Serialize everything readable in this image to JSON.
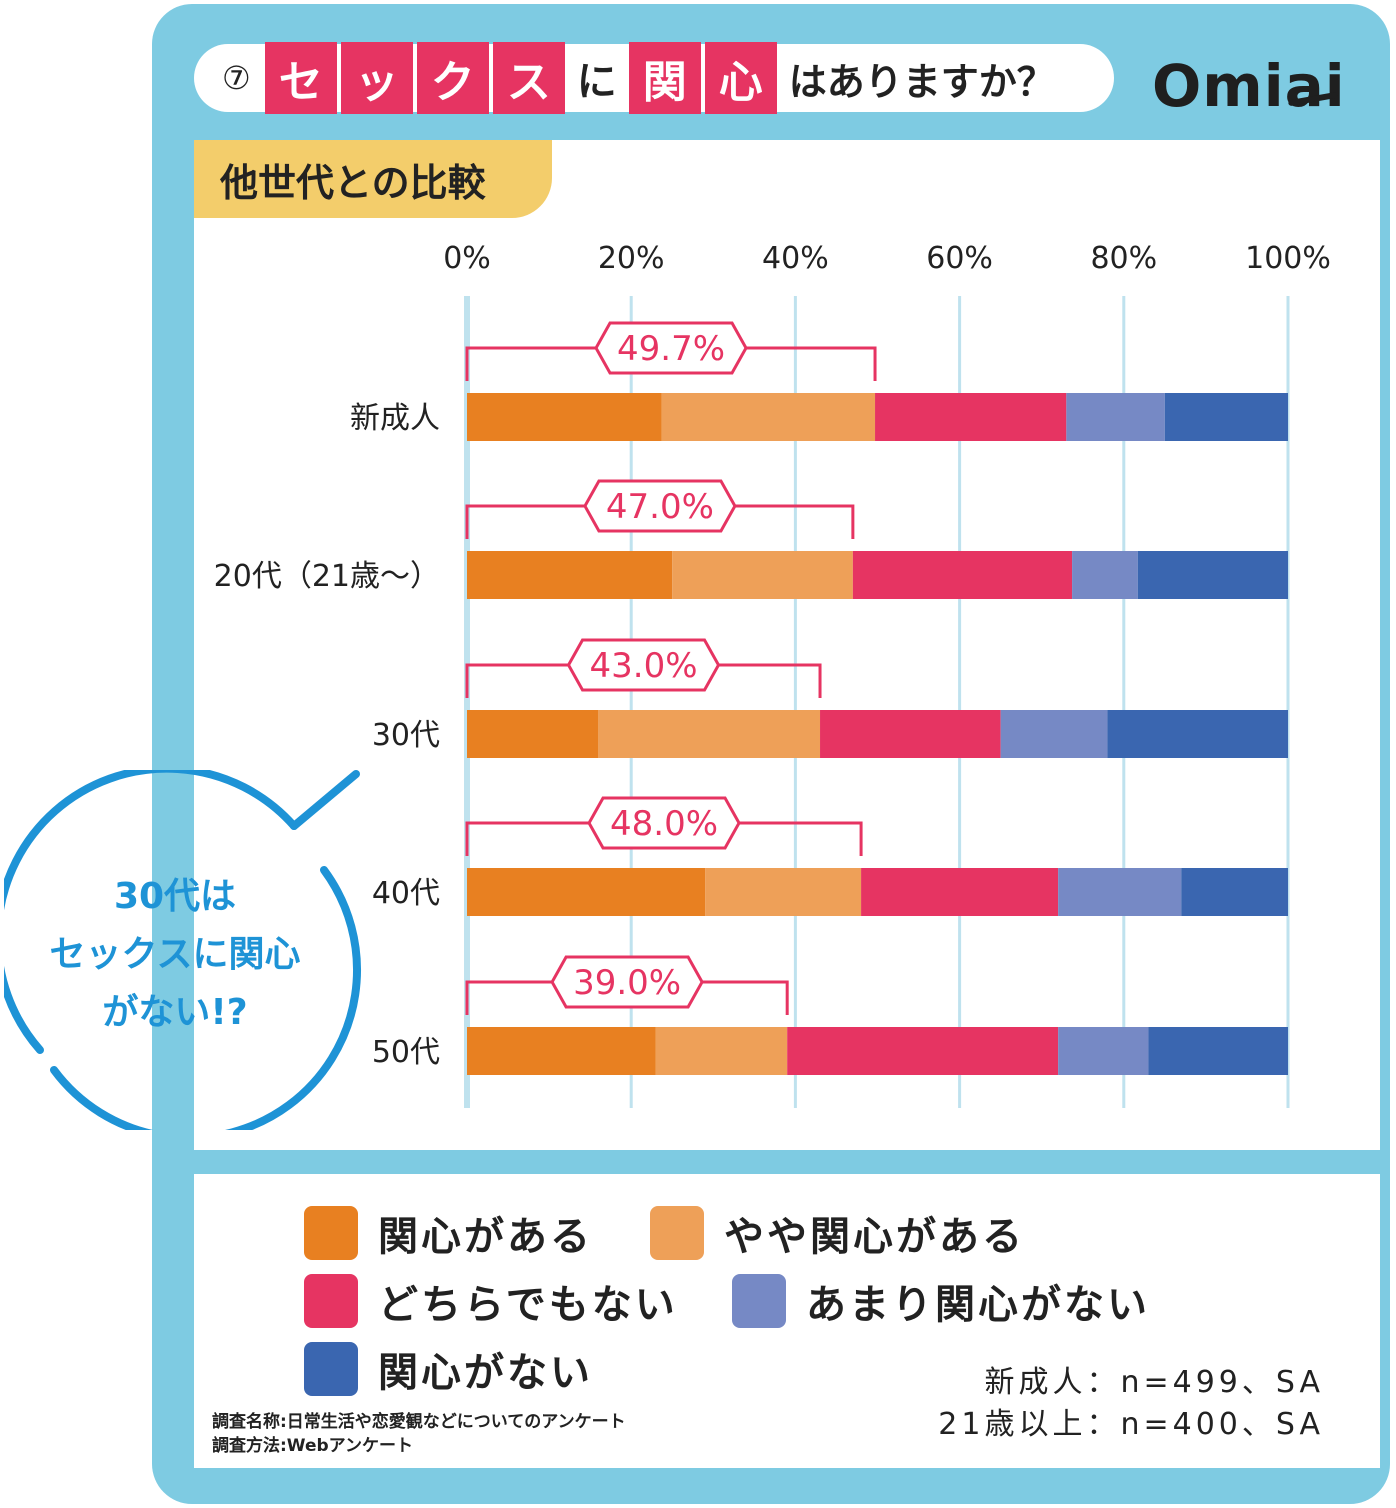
{
  "header": {
    "number": "⑦",
    "boxed_chars": [
      "セ",
      "ッ",
      "ク",
      "ス"
    ],
    "joiner": "に",
    "boxed_chars2": [
      "関",
      "心"
    ],
    "rest": "はありますか？"
  },
  "logo": {
    "text": "Omiai"
  },
  "subtitle": "他世代との比較",
  "callout": {
    "lines": [
      "30代は",
      "セックスに関心",
      "がない!?"
    ]
  },
  "legend": [
    {
      "label": "関心がある",
      "color": "#e88021"
    },
    {
      "label": "やや関心がある",
      "color": "#eea058"
    },
    {
      "label": "どちらでもない",
      "color": "#e63462"
    },
    {
      "label": "あまり関心がない",
      "color": "#7689c5"
    },
    {
      "label": "関心がない",
      "color": "#3a66b0"
    }
  ],
  "notes": {
    "survey_name": "調査名称:日常生活や恋愛観などについてのアンケート",
    "survey_method": "調査方法:Webアンケート"
  },
  "sample": {
    "line1": "新成人：n=499、SA",
    "line2": "21歳以上：n=400、SA"
  },
  "colors": {
    "frame": "#7ecbe2",
    "accent": "#e63462",
    "grid": "#bfe2ee",
    "tab": "#f3cd6b"
  },
  "chart_data": {
    "type": "bar",
    "orientation": "horizontal",
    "stacked": true,
    "categories": [
      "新成人",
      "20代（21歳〜）",
      "30代",
      "40代",
      "50代"
    ],
    "series": [
      {
        "name": "関心がある",
        "values": [
          23.7,
          25.0,
          16.0,
          29.0,
          23.0
        ]
      },
      {
        "name": "やや関心がある",
        "values": [
          26.0,
          22.0,
          27.0,
          19.0,
          16.0
        ]
      },
      {
        "name": "どちらでもない",
        "values": [
          23.3,
          26.7,
          22.0,
          24.0,
          33.0
        ]
      },
      {
        "name": "あまり関心がない",
        "values": [
          12.0,
          8.0,
          13.0,
          15.0,
          11.0
        ]
      },
      {
        "name": "関心がない",
        "values": [
          15.0,
          18.3,
          22.0,
          13.0,
          17.0
        ]
      }
    ],
    "bracket_labels": [
      "49.7%",
      "47.0%",
      "43.0%",
      "48.0%",
      "39.0%"
    ],
    "bracket_values": [
      49.7,
      47.0,
      43.0,
      48.0,
      39.0
    ],
    "xaxis": {
      "ticks": [
        "0%",
        "20%",
        "40%",
        "60%",
        "80%",
        "100%"
      ],
      "range": [
        0,
        100
      ]
    },
    "title": "⑦セックスに関心はありますか？"
  }
}
